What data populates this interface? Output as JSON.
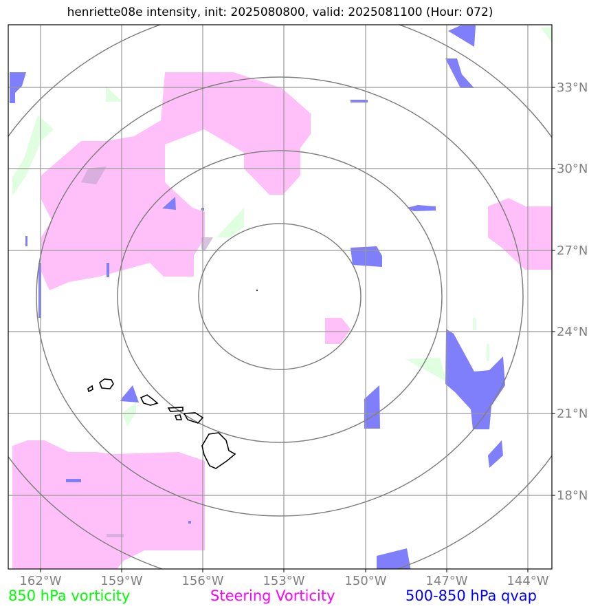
{
  "title": "henriette08e intensity, init: 2025080800, valid: 2025081100 (Hour: 072)",
  "lon_ticks": [
    "162°W",
    "159°W",
    "156°W",
    "153°W",
    "150°W",
    "147°W",
    "144°W"
  ],
  "lat_ticks": [
    "33°N",
    "30°N",
    "27°N",
    "24°N",
    "21°N",
    "18°N"
  ],
  "legend": {
    "vorticity_850": {
      "label": "850 hPa vorticity",
      "color": "#00ff00"
    },
    "steering": {
      "label": "Steering Vorticity",
      "color": "#ff00ff"
    },
    "qvap": {
      "label": "500-850 hPa qvap",
      "color": "#0000ff"
    }
  },
  "fill_colors": {
    "steering": "#ffbff9",
    "vorticity": "#e0ffe0",
    "qvap": "#7f7ffb"
  }
}
